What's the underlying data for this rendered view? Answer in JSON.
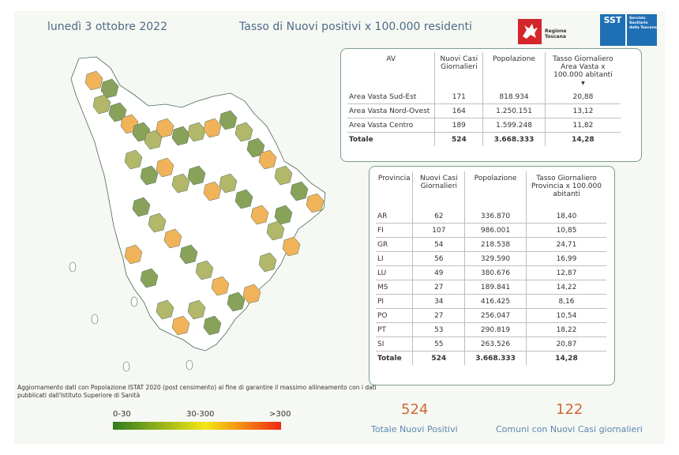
{
  "header": {
    "date": "lunedì 3 ottobre 2022",
    "title": "Tasso di Nuovi positivi x 100.000 residenti"
  },
  "logos": {
    "regione": "Regione Toscana",
    "sst_mark": "SST",
    "sst_name": "Servizio Sanitario della Toscana"
  },
  "av_table": {
    "headers": [
      "AV",
      "Nuovi Casi Giornalieri",
      "Popolazione",
      "Tasso Giornaliero Area Vasta x 100.000 abitanti"
    ],
    "rows": [
      [
        "Area Vasta Sud-Est",
        "171",
        "818.934",
        "20,88"
      ],
      [
        "Area Vasta Nord-Ovest",
        "164",
        "1.250.151",
        "13,12"
      ],
      [
        "Area Vasta Centro",
        "189",
        "1.599.248",
        "11,82"
      ]
    ],
    "total": [
      "Totale",
      "524",
      "3.668.333",
      "14,28"
    ]
  },
  "prov_table": {
    "headers": [
      "Provincia",
      "Nuovi Casi Giornalieri",
      "Popolazione",
      "Tasso Giornaliero Provincia x 100.000 abitanti"
    ],
    "rows": [
      [
        "AR",
        "62",
        "336.870",
        "18,40"
      ],
      [
        "FI",
        "107",
        "986.001",
        "10,85"
      ],
      [
        "GR",
        "54",
        "218.538",
        "24,71"
      ],
      [
        "LI",
        "56",
        "329.590",
        "16,99"
      ],
      [
        "LU",
        "49",
        "380.676",
        "12,87"
      ],
      [
        "MS",
        "27",
        "189.841",
        "14,22"
      ],
      [
        "PI",
        "34",
        "416.425",
        "8,16"
      ],
      [
        "PO",
        "27",
        "256.047",
        "10,54"
      ],
      [
        "PT",
        "53",
        "290.819",
        "18,22"
      ],
      [
        "SI",
        "55",
        "263.526",
        "20,87"
      ]
    ],
    "total": [
      "Totale",
      "524",
      "3.668.333",
      "14,28"
    ]
  },
  "note": "Aggiornamento dati con Popolazione ISTAT 2020 (post censimento) al fine di garantire il massimo allineamento con i dati pubblicati dall'Istituto Superiore di Sanità",
  "legend": {
    "labels": [
      "0-30",
      "30-300",
      ">300"
    ],
    "colors": [
      "#2e7d1e",
      "#f6e616",
      "#f02a14"
    ]
  },
  "kpis": [
    {
      "value": "524",
      "label": "Totale Nuovi Positivi"
    },
    {
      "value": "122",
      "label": "Comuni con Nuovi Casi giornalieri"
    }
  ],
  "map_colors": {
    "white": "#ffffff",
    "green": "#88a25a",
    "light_green": "#b3b76a",
    "orange": "#f1b35a",
    "stroke": "#4a6a5a"
  }
}
